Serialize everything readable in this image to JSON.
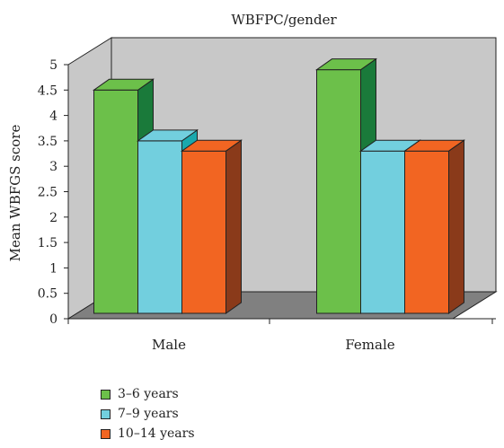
{
  "chart_data": {
    "type": "bar",
    "title": "WBFPC/gender",
    "xlabel": "",
    "ylabel": "Mean WBFGS score",
    "ylim": [
      0,
      5
    ],
    "yticks": [
      "0",
      "0.5",
      "1",
      "1.5",
      "2",
      "2.5",
      "3",
      "3.5",
      "4",
      "4.5",
      "5"
    ],
    "categories": [
      "Male",
      "Female"
    ],
    "series": [
      {
        "name": "3–6 years",
        "values": [
          4.5,
          4.9
        ],
        "color": "#6cc04a",
        "side_color": "#1a7a3a"
      },
      {
        "name": "7–9 years",
        "values": [
          3.5,
          3.3
        ],
        "color": "#72cfde",
        "side_color": "#1aa8ad"
      },
      {
        "name": "10–14 years",
        "values": [
          3.3,
          3.3
        ],
        "color": "#f26522",
        "side_color": "#8a3a1a"
      }
    ],
    "legend_position": "bottom-left",
    "grid": false,
    "three_d": true
  }
}
